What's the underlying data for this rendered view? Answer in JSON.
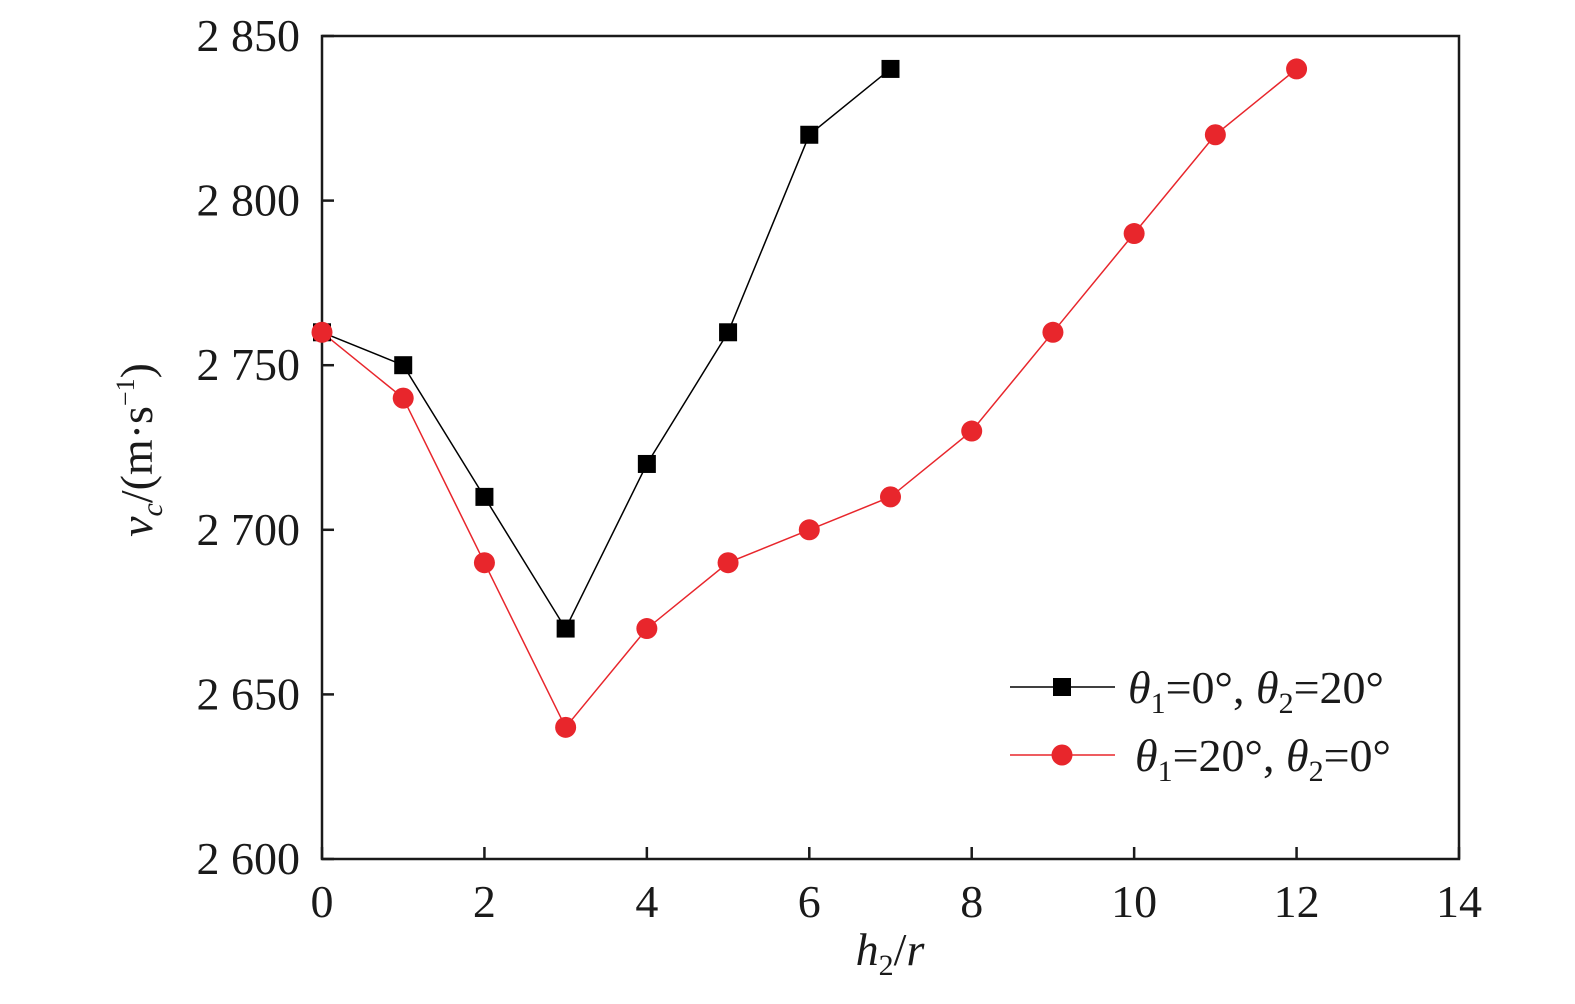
{
  "chart_data": {
    "type": "line",
    "xlabel_parts": {
      "var": "h",
      "sub": "2",
      "rest": "/",
      "var2": "r"
    },
    "ylabel_parts": {
      "var": "v",
      "sub": "c",
      "unit_open": "/(m·s",
      "sup": "−1",
      "unit_close": ")"
    },
    "xlim": [
      0,
      14
    ],
    "ylim": [
      2600,
      2850
    ],
    "x_ticks": [
      "0",
      "2",
      "4",
      "6",
      "8",
      "10",
      "12",
      "14"
    ],
    "y_ticks": [
      "2 600",
      "2 650",
      "2 700",
      "2 750",
      "2 800",
      "2 850"
    ],
    "grid": false,
    "legend_position": "right",
    "series": [
      {
        "name": "θ1=0°, θ2=20°",
        "legend": {
          "a": "θ",
          "a_sub": "1",
          "a_val": "=0°, ",
          "b": "θ",
          "b_sub": "2",
          "b_val": "=20°"
        },
        "marker": "square",
        "color": "#000000",
        "line_color": "#000000",
        "x": [
          0,
          1,
          2,
          3,
          4,
          5,
          6,
          7
        ],
        "y": [
          2760,
          2750,
          2710,
          2670,
          2720,
          2760,
          2820,
          2840
        ]
      },
      {
        "name": "θ1=20°, θ2=0°",
        "legend": {
          "a": "θ",
          "a_sub": "1",
          "a_val": "=20°, ",
          "b": "θ",
          "b_sub": "2",
          "b_val": "=0°"
        },
        "marker": "circle",
        "color": "#e8262c",
        "line_color": "#e8262c",
        "x": [
          0,
          1,
          2,
          3,
          4,
          5,
          6,
          7,
          8,
          9,
          10,
          11,
          12
        ],
        "y": [
          2760,
          2740,
          2690,
          2640,
          2670,
          2690,
          2700,
          2710,
          2730,
          2760,
          2790,
          2820,
          2840
        ]
      }
    ]
  }
}
